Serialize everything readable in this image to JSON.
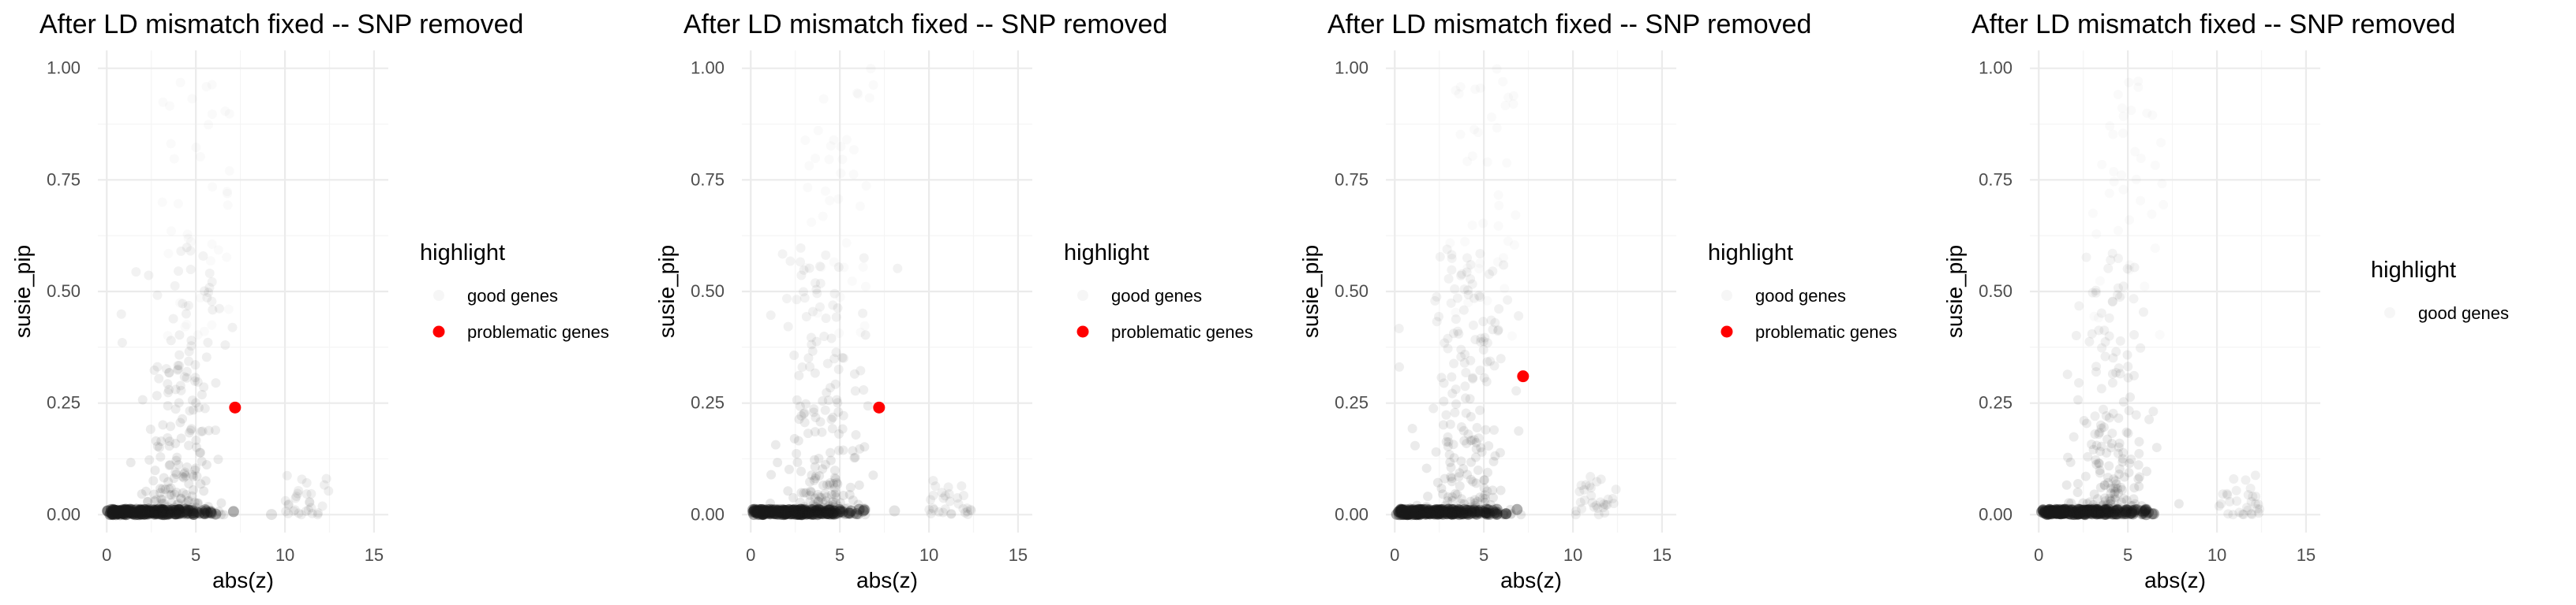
{
  "chart_data": [
    {
      "type": "scatter",
      "title": "After LD mismatch fixed -- SNP removed",
      "xlabel": "abs(z)",
      "ylabel": "susie_pip",
      "xlim": [
        -0.5,
        15.8
      ],
      "ylim": [
        -0.04,
        1.04
      ],
      "x_ticks": [
        "0",
        "5",
        "10",
        "15"
      ],
      "y_ticks": [
        "0.00",
        "0.25",
        "0.50",
        "0.75",
        "1.00"
      ],
      "grid": true,
      "legend": {
        "title": "highlight",
        "placement": "right",
        "entries": [
          "good genes",
          "problematic genes"
        ]
      },
      "series": [
        {
          "name": "problematic genes",
          "x": [
            7.2
          ],
          "y": [
            0.24
          ],
          "color": "#ff0000"
        }
      ]
    },
    {
      "type": "scatter",
      "title": "After LD mismatch fixed -- SNP removed",
      "xlabel": "abs(z)",
      "ylabel": "susie_pip",
      "xlim": [
        -0.5,
        15.8
      ],
      "ylim": [
        -0.04,
        1.04
      ],
      "x_ticks": [
        "0",
        "5",
        "10",
        "15"
      ],
      "y_ticks": [
        "0.00",
        "0.25",
        "0.50",
        "0.75",
        "1.00"
      ],
      "grid": true,
      "legend": {
        "title": "highlight",
        "placement": "right",
        "entries": [
          "good genes",
          "problematic genes"
        ]
      },
      "series": [
        {
          "name": "problematic genes",
          "x": [
            7.2
          ],
          "y": [
            0.24
          ],
          "color": "#ff0000"
        }
      ]
    },
    {
      "type": "scatter",
      "title": "After LD mismatch fixed -- SNP removed",
      "xlabel": "abs(z)",
      "ylabel": "susie_pip",
      "xlim": [
        -0.5,
        15.8
      ],
      "ylim": [
        -0.04,
        1.04
      ],
      "x_ticks": [
        "0",
        "5",
        "10",
        "15"
      ],
      "y_ticks": [
        "0.00",
        "0.25",
        "0.50",
        "0.75",
        "1.00"
      ],
      "grid": true,
      "legend": {
        "title": "highlight",
        "placement": "right",
        "entries": [
          "good genes",
          "problematic genes"
        ]
      },
      "series": [
        {
          "name": "problematic genes",
          "x": [
            7.2
          ],
          "y": [
            0.31
          ],
          "color": "#ff0000"
        }
      ]
    },
    {
      "type": "scatter",
      "title": "After LD mismatch fixed -- SNP removed",
      "xlabel": "abs(z)",
      "ylabel": "susie_pip",
      "xlim": [
        -0.5,
        15.8
      ],
      "ylim": [
        -0.04,
        1.04
      ],
      "x_ticks": [
        "0",
        "5",
        "10",
        "15"
      ],
      "y_ticks": [
        "0.00",
        "0.25",
        "0.50",
        "0.75",
        "1.00"
      ],
      "grid": true,
      "legend": {
        "title": "highlight",
        "placement": "right",
        "entries": [
          "good genes"
        ]
      },
      "series": []
    }
  ]
}
